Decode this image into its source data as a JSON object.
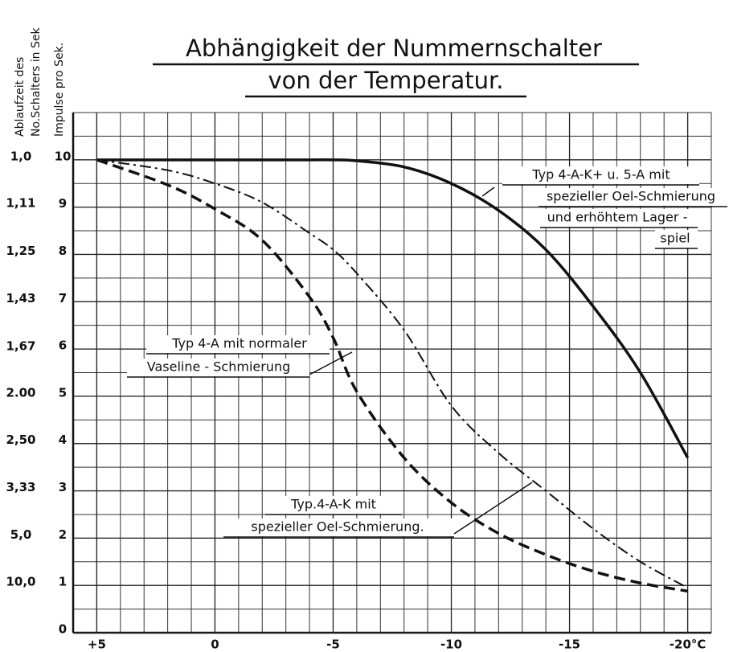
{
  "chart_data": {
    "type": "line",
    "title_lines": [
      "Abhängigkeit der Nummernschalter",
      "von der Temperatur."
    ],
    "ylabel_lines": [
      "Ablaufzeit des",
      "No.Schalters in Sek"
    ],
    "y2label": "Impulse pro Sek.",
    "x": [
      5,
      2,
      0,
      -2,
      -4,
      -5,
      -6,
      -8,
      -10,
      -12,
      -14,
      -16,
      -18,
      -20
    ],
    "xlim": [
      6,
      -21
    ],
    "xticks": [
      {
        "value": 5,
        "label": "+5"
      },
      0,
      -5,
      -10,
      -15,
      {
        "value": -20,
        "label": "-20°C"
      }
    ],
    "ylim": [
      0,
      11
    ],
    "yticks": [
      0,
      1,
      2,
      3,
      4,
      5,
      6,
      7,
      8,
      9,
      10
    ],
    "y2scale": "reciprocal",
    "y2ticks": [
      {
        "value": 1.0,
        "label": "1,0"
      },
      {
        "value": 1.11,
        "label": "1,11"
      },
      {
        "value": 1.25,
        "label": "1,25"
      },
      {
        "value": 1.43,
        "label": "1,43"
      },
      {
        "value": 1.67,
        "label": "1,67"
      },
      {
        "value": 2.0,
        "label": "2.00"
      },
      {
        "value": 2.5,
        "label": "2,50"
      },
      {
        "value": 3.33,
        "label": "3,33"
      },
      {
        "value": 5.0,
        "label": "5,0"
      },
      {
        "value": 10.0,
        "label": "10,0"
      }
    ],
    "grid": true,
    "series": [
      {
        "labels": [
          "Typ 4-A-K+ u. 5-A mit",
          "spezieller Oel-Schmierung",
          "und erhöhtem Lager -",
          "spiel"
        ],
        "color": "#111111",
        "dash": "solid",
        "values": [
          10,
          10,
          10,
          10,
          10,
          10,
          9.98,
          9.85,
          9.5,
          8.93,
          8.1,
          6.9,
          5.5,
          3.7
        ]
      },
      {
        "labels": [
          "Typ.4-A-K mit",
          "spezieller Oel-Schmierung."
        ],
        "color": "#111111",
        "dash": "dashdot",
        "values": [
          10,
          9.78,
          9.5,
          9.1,
          8.45,
          8.1,
          7.6,
          6.4,
          4.8,
          3.8,
          3.0,
          2.2,
          1.5,
          0.95
        ]
      },
      {
        "labels": [
          "Typ  4-A mit normaler",
          "Vaseline - Schmierung"
        ],
        "color": "#111111",
        "dash": "dash",
        "values": [
          10,
          9.47,
          8.96,
          8.3,
          7.1,
          6.24,
          5.1,
          3.7,
          2.75,
          2.1,
          1.65,
          1.3,
          1.05,
          0.88
        ]
      }
    ]
  }
}
